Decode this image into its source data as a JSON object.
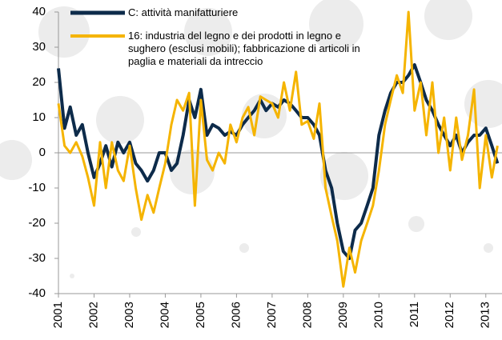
{
  "chart_data": {
    "type": "line",
    "x": [
      2001,
      2001.17,
      2001.33,
      2001.5,
      2001.67,
      2001.83,
      2002,
      2002.17,
      2002.33,
      2002.5,
      2002.67,
      2002.83,
      2003,
      2003.17,
      2003.33,
      2003.5,
      2003.67,
      2003.83,
      2004,
      2004.17,
      2004.33,
      2004.5,
      2004.67,
      2004.83,
      2005,
      2005.17,
      2005.33,
      2005.5,
      2005.67,
      2005.83,
      2006,
      2006.17,
      2006.33,
      2006.5,
      2006.67,
      2006.83,
      2007,
      2007.17,
      2007.33,
      2007.5,
      2007.67,
      2007.83,
      2008,
      2008.17,
      2008.33,
      2008.5,
      2008.67,
      2008.83,
      2009,
      2009.17,
      2009.33,
      2009.5,
      2009.67,
      2009.83,
      2010,
      2010.17,
      2010.33,
      2010.5,
      2010.67,
      2010.83,
      2011,
      2011.17,
      2011.33,
      2011.5,
      2011.67,
      2011.83,
      2012,
      2012.17,
      2012.33,
      2012.5,
      2012.67,
      2012.83,
      2013,
      2013.17,
      2013.33
    ],
    "series": [
      {
        "name": "C: attività manifatturiere",
        "color": "#0d2b4a",
        "values": [
          24,
          7,
          13,
          5,
          8,
          0,
          -7,
          -3,
          2,
          -4,
          3,
          0,
          3,
          -3,
          -5,
          -8,
          -5,
          0,
          0,
          -5,
          -3,
          5,
          15,
          10,
          18,
          5,
          8,
          7,
          5,
          6,
          5,
          8,
          10,
          12,
          15,
          12,
          14,
          13,
          15,
          14,
          12,
          10,
          10,
          8,
          5,
          -5,
          -10,
          -20,
          -28,
          -30,
          -22,
          -20,
          -15,
          -10,
          5,
          12,
          17,
          20,
          20,
          22,
          25,
          20,
          15,
          12,
          8,
          5,
          2,
          5,
          0,
          3,
          5,
          5,
          7,
          2,
          -3
        ]
      },
      {
        "name": "16: industria del legno e dei prodotti in legno e sughero (esclusi mobili); fabbricazione di articoli in paglia e materiali da intreccio",
        "color": "#f5b400",
        "values": [
          14,
          2,
          0,
          3,
          -1,
          -7,
          -15,
          3,
          -10,
          3,
          -5,
          -8,
          2,
          -10,
          -19,
          -12,
          -17,
          -10,
          -3,
          8,
          15,
          12,
          17,
          -15,
          15,
          -2,
          -5,
          0,
          -3,
          8,
          3,
          10,
          13,
          5,
          16,
          15,
          14,
          10,
          20,
          12,
          23,
          8,
          9,
          4,
          14,
          -10,
          -18,
          -25,
          -38,
          -27,
          -34,
          -25,
          -20,
          -15,
          -5,
          8,
          15,
          22,
          17,
          40,
          12,
          20,
          5,
          20,
          0,
          10,
          -5,
          10,
          -2,
          5,
          18,
          -10,
          5,
          -7,
          2
        ]
      }
    ],
    "xlim": [
      2001,
      2013.5
    ],
    "xticks": [
      2001,
      2002,
      2003,
      2004,
      2005,
      2006,
      2007,
      2008,
      2009,
      2010,
      2011,
      2012,
      2013
    ],
    "ylim": [
      -40,
      40
    ],
    "yticks": [
      -40,
      -30,
      -20,
      -10,
      0,
      10,
      20,
      30,
      40
    ]
  }
}
